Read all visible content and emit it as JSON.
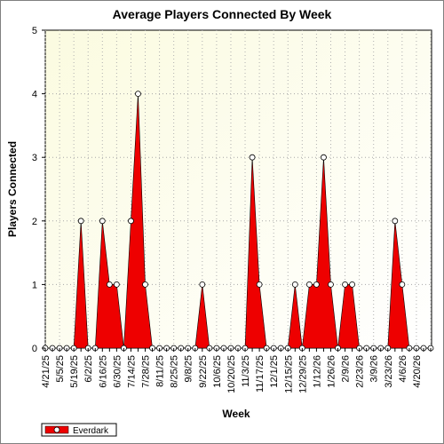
{
  "chart_data": {
    "type": "area",
    "title": "Average Players Connected By Week",
    "xlabel": "Week",
    "ylabel": "Players Connected",
    "ylim": [
      0,
      5
    ],
    "yticks": [
      "0",
      "1",
      "2",
      "3",
      "4",
      "5"
    ],
    "tick_labels": [
      "4/21/25",
      "5/5/25",
      "5/19/25",
      "6/2/25",
      "6/16/25",
      "6/30/25",
      "7/14/25",
      "7/28/25",
      "8/11/25",
      "8/25/25",
      "9/8/25",
      "9/22/25",
      "10/6/25",
      "10/20/25",
      "11/3/25",
      "11/17/25",
      "12/1/25",
      "12/15/25",
      "12/29/25",
      "1/12/26",
      "1/26/26",
      "2/9/26",
      "2/23/26",
      "3/9/26",
      "3/23/26",
      "4/6/26",
      "4/20/26"
    ],
    "series": [
      {
        "name": "Everdark",
        "color": "#ee0000",
        "values": [
          0,
          0,
          0,
          0,
          0,
          2,
          0,
          0,
          2,
          1,
          1,
          0,
          2,
          4,
          1,
          0,
          0,
          0,
          0,
          0,
          0,
          0,
          1,
          0,
          0,
          0,
          0,
          0,
          0,
          3,
          1,
          0,
          0,
          0,
          0,
          1,
          0,
          1,
          1,
          3,
          1,
          0,
          1,
          1,
          0,
          0,
          0,
          0,
          0,
          2,
          1,
          0,
          0,
          0,
          0
        ]
      }
    ],
    "grid": true,
    "legend_position": "bottom-left"
  }
}
